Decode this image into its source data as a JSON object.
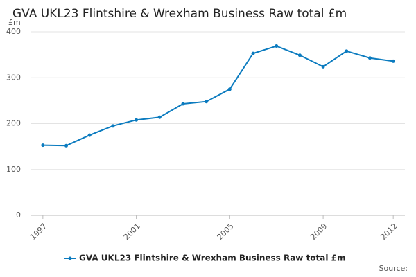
{
  "chart_data": {
    "type": "line",
    "title": "GVA UKL23 Flintshire & Wrexham Business Raw total £m",
    "y_unit": "£m",
    "x": [
      1997,
      1998,
      1999,
      2000,
      2001,
      2002,
      2003,
      2004,
      2005,
      2006,
      2007,
      2008,
      2009,
      2010,
      2011,
      2012
    ],
    "series": [
      {
        "name": "GVA UKL23 Flintshire & Wrexham Business Raw total £m",
        "color": "#0b7bbf",
        "values": [
          153,
          152,
          175,
          195,
          208,
          214,
          243,
          248,
          275,
          353,
          369,
          349,
          324,
          358,
          343,
          336
        ]
      }
    ],
    "xlim": [
      1996.5,
      2012.5
    ],
    "xticks": [
      1997,
      2001,
      2005,
      2009,
      2012
    ],
    "ylim": [
      0,
      400
    ],
    "yticks": [
      0,
      100,
      200,
      300,
      400
    ],
    "grid": true,
    "legend": "bottom",
    "source": "Source:"
  }
}
